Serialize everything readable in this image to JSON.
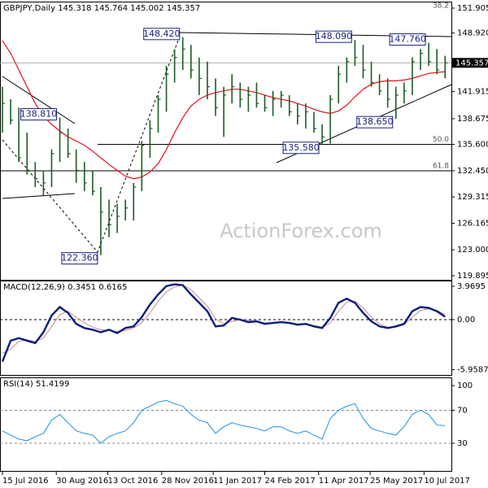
{
  "chart_data": [
    {
      "type": "ohlc",
      "title": "GBPJPY,Daily",
      "last": {
        "open": 145.318,
        "high": 145.764,
        "low": 145.002,
        "close": 145.357
      },
      "watermark": "ActionForex.com",
      "color": "#1b5e20",
      "x": [
        "2016-07-15",
        "2016-07-22",
        "2016-07-29",
        "2016-08-05",
        "2016-08-12",
        "2016-08-19",
        "2016-08-26",
        "2016-09-02",
        "2016-09-09",
        "2016-09-16",
        "2016-09-23",
        "2016-09-30",
        "2016-10-07",
        "2016-10-14",
        "2016-10-21",
        "2016-10-28",
        "2016-11-04",
        "2016-11-11",
        "2016-11-18",
        "2016-11-25",
        "2016-12-02",
        "2016-12-09",
        "2016-12-16",
        "2016-12-23",
        "2016-12-30",
        "2017-01-06",
        "2017-01-13",
        "2017-01-20",
        "2017-01-27",
        "2017-02-03",
        "2017-02-10",
        "2017-02-17",
        "2017-02-24",
        "2017-03-03",
        "2017-03-10",
        "2017-03-17",
        "2017-03-24",
        "2017-03-31",
        "2017-04-07",
        "2017-04-14",
        "2017-04-21",
        "2017-04-28",
        "2017-05-05",
        "2017-05-12",
        "2017-05-19",
        "2017-05-26",
        "2017-06-02",
        "2017-06-09",
        "2017-06-16",
        "2017-06-23",
        "2017-06-30",
        "2017-07-07",
        "2017-07-14",
        "2017-07-21",
        "2017-07-28"
      ],
      "high": [
        142.5,
        141.0,
        140.0,
        137.0,
        133.5,
        132.5,
        135.0,
        138.81,
        137.5,
        135.0,
        133.5,
        132.5,
        130.5,
        129.0,
        128.5,
        129.0,
        131.0,
        136.0,
        138.5,
        141.5,
        145.0,
        147.0,
        148.42,
        147.5,
        146.0,
        145.5,
        143.5,
        142.5,
        144.0,
        143.0,
        142.5,
        143.0,
        141.5,
        142.0,
        142.0,
        141.5,
        140.5,
        140.5,
        139.5,
        138.0,
        141.5,
        145.0,
        146.0,
        148.09,
        147.5,
        145.5,
        144.0,
        143.5,
        142.5,
        143.0,
        146.0,
        147.0,
        147.76,
        147.0,
        146.2
      ],
      "low": [
        137.0,
        138.0,
        133.5,
        132.0,
        130.5,
        129.5,
        130.5,
        133.5,
        134.0,
        131.0,
        130.0,
        129.5,
        122.36,
        124.5,
        125.0,
        126.5,
        126.5,
        130.0,
        134.0,
        137.0,
        139.5,
        143.0,
        144.5,
        143.5,
        141.5,
        141.0,
        139.0,
        136.5,
        140.5,
        140.0,
        139.5,
        140.0,
        139.5,
        139.0,
        140.0,
        139.0,
        138.0,
        137.5,
        137.0,
        135.58,
        135.7,
        140.5,
        143.0,
        145.0,
        143.5,
        142.5,
        141.5,
        140.0,
        138.65,
        140.5,
        141.5,
        144.5,
        145.0,
        144.0,
        143.5
      ],
      "close": [
        140.5,
        138.5,
        134.0,
        132.5,
        131.5,
        131.0,
        134.5,
        137.0,
        134.5,
        132.5,
        131.0,
        130.0,
        127.5,
        126.0,
        127.0,
        128.0,
        130.5,
        135.5,
        137.5,
        141.0,
        144.0,
        146.0,
        147.0,
        144.5,
        143.5,
        142.5,
        140.0,
        141.5,
        142.5,
        141.0,
        141.5,
        140.5,
        140.0,
        141.0,
        141.5,
        139.5,
        139.0,
        139.5,
        137.5,
        136.5,
        141.0,
        144.0,
        145.5,
        146.0,
        144.5,
        143.0,
        142.0,
        141.0,
        141.5,
        142.0,
        145.5,
        146.5,
        145.5,
        144.5,
        145.357
      ],
      "ma": {
        "color": "#e0141e",
        "values": [
          148,
          146.5,
          144.5,
          142.5,
          140.5,
          139,
          138,
          137.2,
          136.5,
          136,
          135.5,
          134.8,
          134,
          133.2,
          132.5,
          131.8,
          131.5,
          131.7,
          132.3,
          133.3,
          135,
          137,
          138.8,
          140.2,
          141,
          141.5,
          141.8,
          142,
          142.2,
          142.2,
          142,
          141.8,
          141.5,
          141.2,
          141,
          140.8,
          140.5,
          140.2,
          139.8,
          139.5,
          139.3,
          139.6,
          140.3,
          141.3,
          142.2,
          142.8,
          143.1,
          143.2,
          143.2,
          143.3,
          143.5,
          143.8,
          144.1,
          144.2,
          144.3
        ]
      },
      "annotations": [
        {
          "value": 148.42,
          "label": "148.420",
          "x": "2016-12-16",
          "side": "high"
        },
        {
          "value": 148.09,
          "label": "148.090",
          "x": "2017-05-12",
          "side": "high"
        },
        {
          "value": 147.76,
          "label": "147.760",
          "x": "2017-07-14",
          "side": "high"
        },
        {
          "value": 138.81,
          "label": "138.810",
          "x": "2016-09-02",
          "side": "high"
        },
        {
          "value": 122.36,
          "label": "122.360",
          "x": "2016-10-07",
          "side": "low"
        },
        {
          "value": 135.58,
          "label": "135.580",
          "x": "2017-04-14",
          "side": "low"
        },
        {
          "value": 138.65,
          "label": "138.650",
          "x": "2017-06-16",
          "side": "low"
        }
      ],
      "fib_levels": [
        {
          "value": 151.6,
          "label": "38.2"
        },
        {
          "value": 135.6,
          "label": "50.0"
        },
        {
          "value": 132.45,
          "label": "61.8"
        }
      ],
      "xlim": [
        "2016-07-15",
        "2017-08-01"
      ],
      "xticks": [
        {
          "value": "2016-07-15",
          "label": "15 Jul 2016"
        },
        {
          "value": "2016-08-30",
          "label": "30 Aug 2016"
        },
        {
          "value": "2016-10-13",
          "label": "13 Oct 2016"
        },
        {
          "value": "2016-11-28",
          "label": "28 Nov 2016"
        },
        {
          "value": "2017-01-11",
          "label": "11 Jan 2017"
        },
        {
          "value": "2017-02-24",
          "label": "24 Feb 2017"
        },
        {
          "value": "2017-04-11",
          "label": "11 Apr 2017"
        },
        {
          "value": "2017-05-25",
          "label": "25 May 2017"
        },
        {
          "value": "2017-07-10",
          "label": "10 Jul 2017"
        }
      ],
      "ylim": [
        119.31,
        152.68
      ],
      "yticks": [
        151.905,
        {
          "value": 148.92,
          "label": "148.920"
        },
        141.915,
        138.675,
        {
          "value": 135.6,
          "label": "135.600"
        },
        {
          "value": 132.45,
          "label": "132.450"
        },
        129.315,
        126.165,
        {
          "value": 123,
          "label": "123.000"
        },
        119.895
      ]
    },
    {
      "type": "macd",
      "title": "MACD(12,26,9)",
      "macd_last": 0.3451,
      "signal_last": 0.6165,
      "series": [
        {
          "color": "#0a1e7a",
          "values": [
            -5,
            -2.5,
            -2.2,
            -2.5,
            -2.8,
            -1.5,
            0.5,
            1.5,
            0.8,
            -0.5,
            -1.0,
            -1.2,
            -1.5,
            -1.2,
            -1.6,
            -1.0,
            -0.8,
            0.3,
            1.8,
            3.0,
            4.0,
            4.2,
            4.1,
            3.0,
            2.0,
            1.0,
            -0.8,
            -0.7,
            0.2,
            0,
            -0.3,
            -0.2,
            -0.5,
            -0.4,
            -0.3,
            -0.4,
            -0.6,
            -0.5,
            -0.8,
            -1.0,
            0.2,
            2.0,
            2.5,
            2.0,
            0.8,
            -0.2,
            -0.8,
            -1.0,
            -0.8,
            -0.5,
            1.0,
            1.5,
            1.4,
            1.0,
            0.3451
          ]
        },
        {
          "color": "#c98a9a",
          "values": [
            -4,
            -3.5,
            -2.6,
            -2.4,
            -2.6,
            -2.2,
            -0.8,
            0.6,
            1.0,
            0.3,
            -0.4,
            -0.9,
            -1.2,
            -1.3,
            -1.4,
            -1.3,
            -1.0,
            -0.4,
            0.8,
            2.2,
            3.3,
            3.9,
            4.1,
            3.6,
            2.6,
            1.6,
            0.1,
            -0.5,
            -0.2,
            0,
            -0.1,
            -0.2,
            -0.4,
            -0.4,
            -0.3,
            -0.4,
            -0.5,
            -0.5,
            -0.7,
            -0.9,
            -0.4,
            1.0,
            2.1,
            2.2,
            1.4,
            0.3,
            -0.5,
            -0.9,
            -0.9,
            -0.6,
            0.3,
            1.1,
            1.3,
            1.1,
            0.6165
          ]
        }
      ],
      "ylim": [
        -6.68,
        4.55
      ],
      "yticks": [
        3.9695,
        {
          "value": 0,
          "label": "0.00"
        },
        -5.9587
      ]
    },
    {
      "type": "rsi",
      "title": "RSI(14)",
      "last": 51.4199,
      "color": "#1e90e0",
      "values": [
        45,
        40,
        35,
        33,
        38,
        42,
        58,
        65,
        55,
        45,
        42,
        40,
        30,
        38,
        42,
        45,
        55,
        70,
        75,
        80,
        82,
        78,
        75,
        65,
        58,
        55,
        42,
        50,
        55,
        52,
        50,
        48,
        45,
        50,
        50,
        45,
        42,
        45,
        40,
        35,
        60,
        70,
        75,
        78,
        60,
        48,
        45,
        42,
        40,
        50,
        65,
        70,
        65,
        52,
        51.4199
      ],
      "ylim": [
        -4.5,
        108.9
      ],
      "yticks": [
        100,
        70,
        30
      ]
    }
  ]
}
